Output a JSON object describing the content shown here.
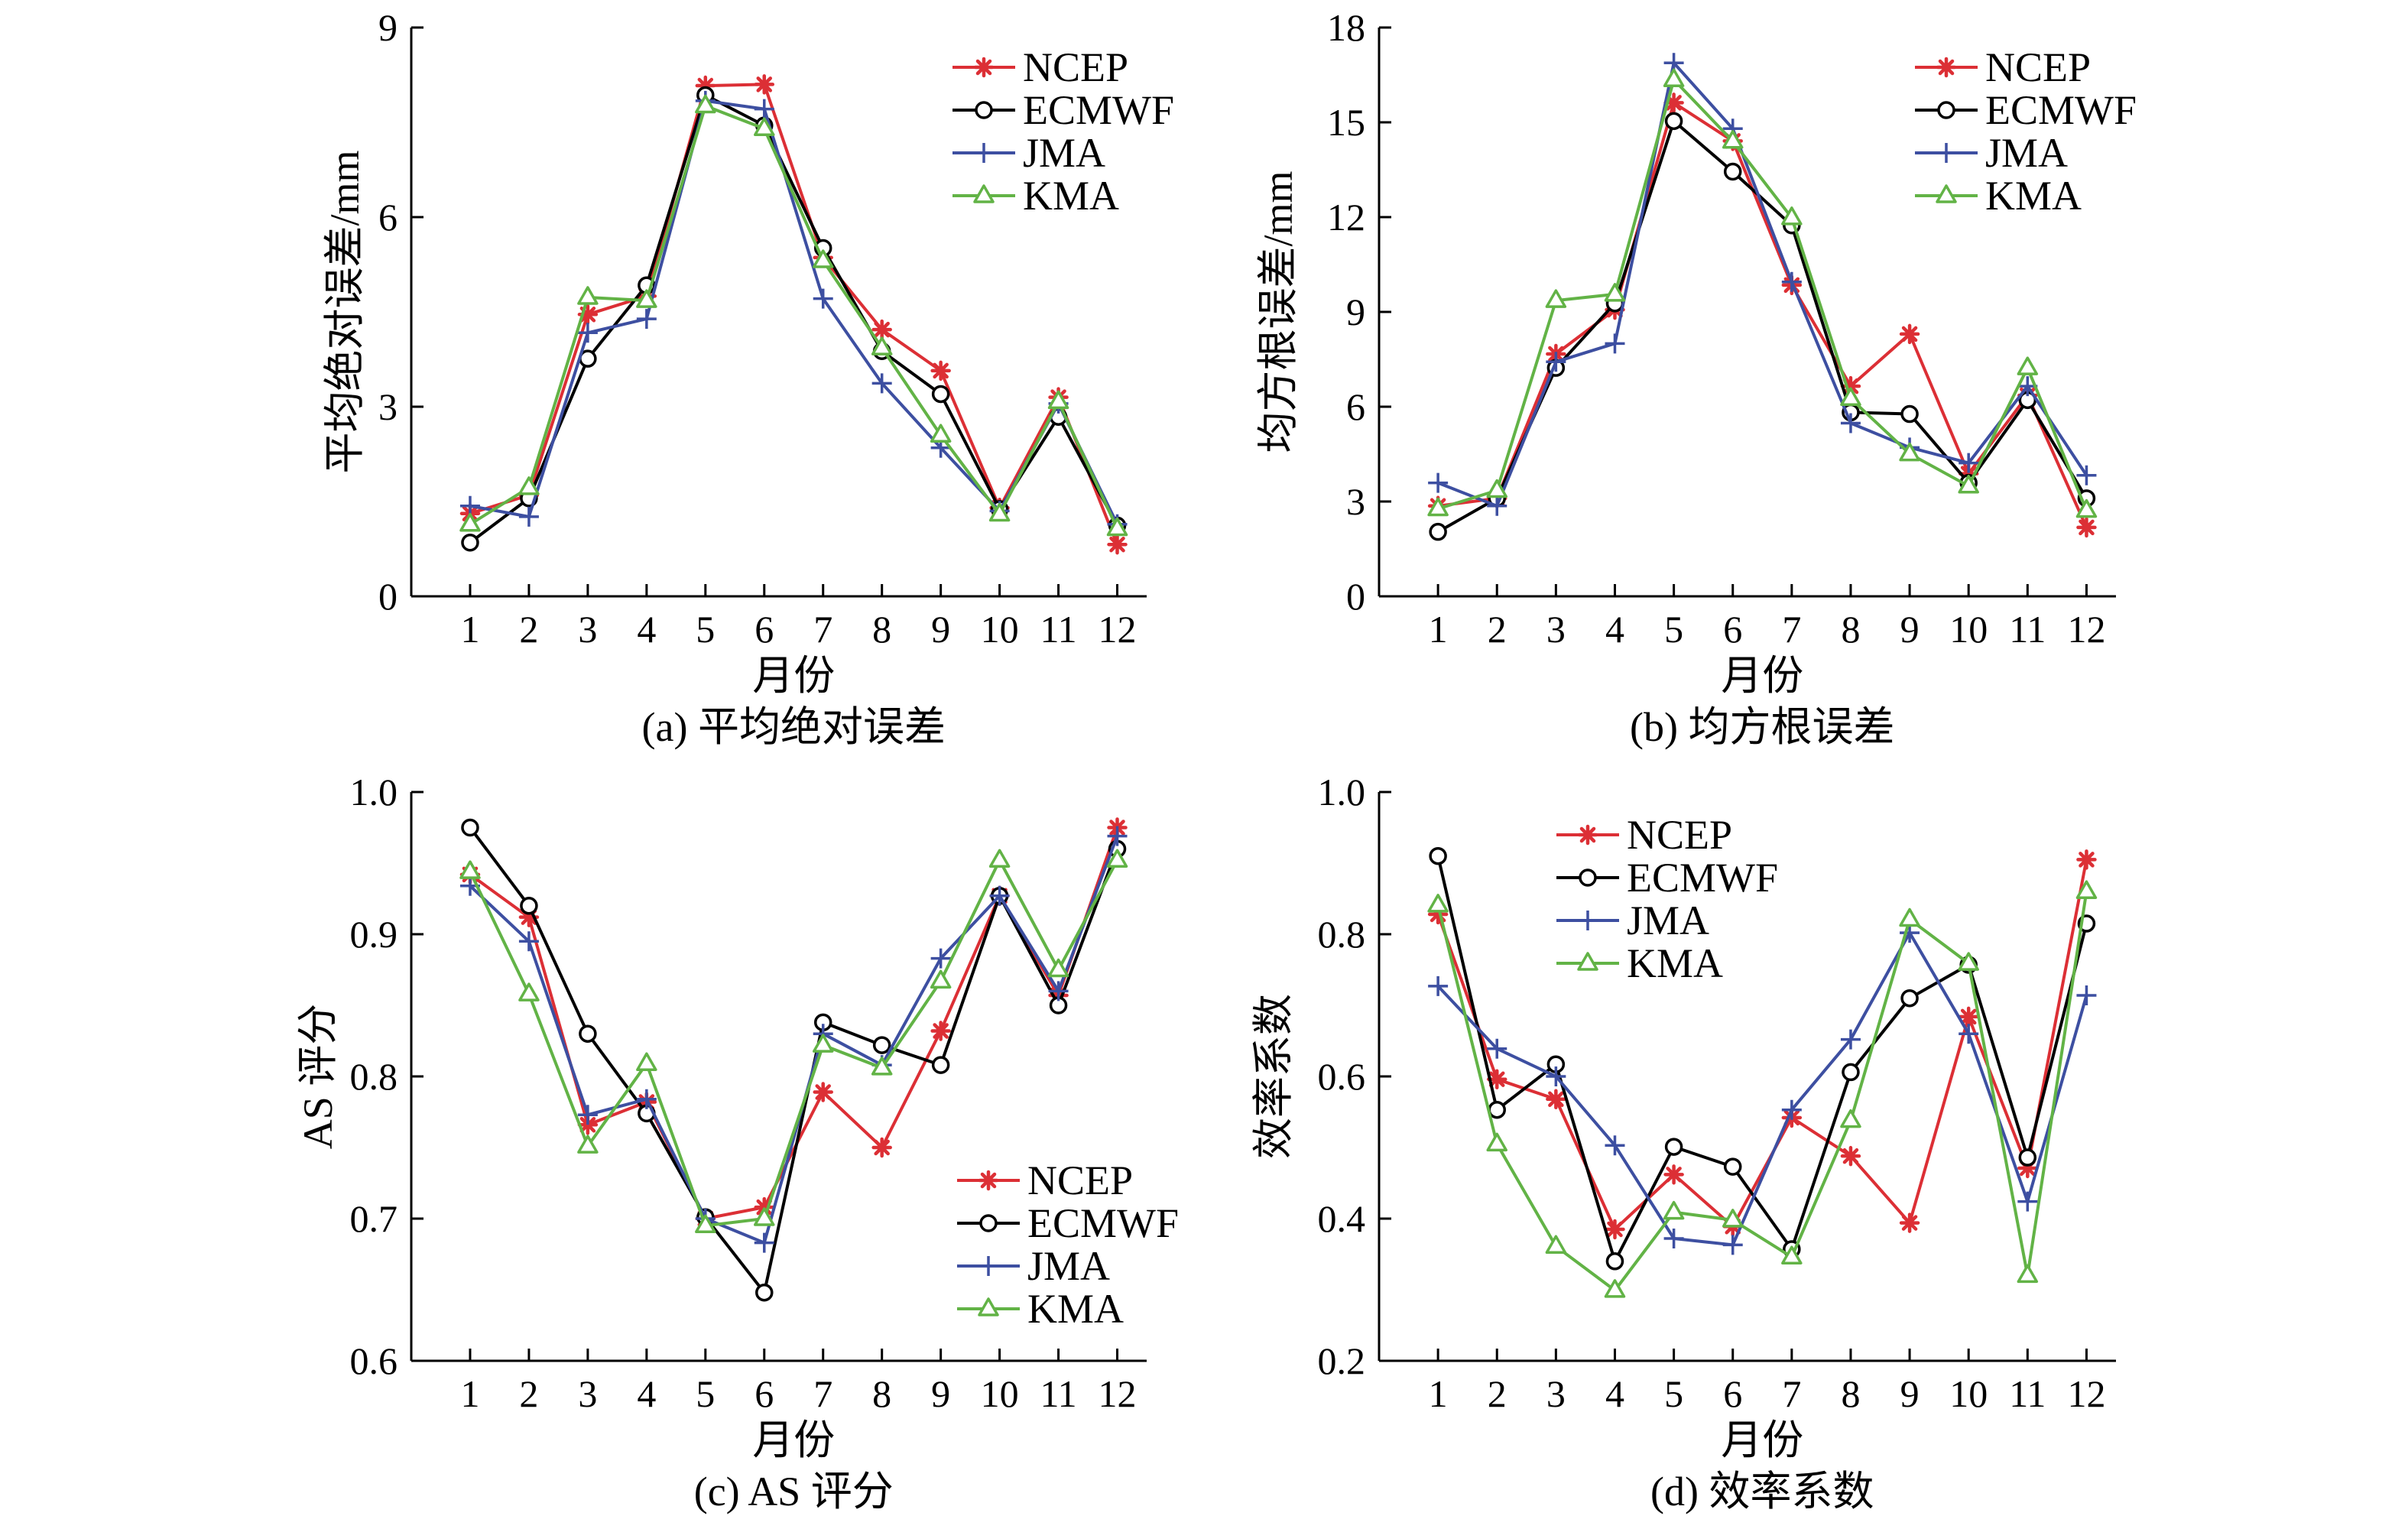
{
  "chart_data": [
    {
      "type": "line",
      "caption": "(a) 平均绝对误差",
      "xlabel": "月份",
      "ylabel": "平均绝对误差/mm",
      "categories": [
        "1",
        "2",
        "3",
        "4",
        "5",
        "6",
        "7",
        "8",
        "9",
        "10",
        "11",
        "12"
      ],
      "xlim": [
        0,
        12.5
      ],
      "ylim": [
        0,
        9
      ],
      "ytick_labels": [
        "0",
        "3",
        "6",
        "9"
      ],
      "grid": false,
      "legend": "top-right",
      "series": [
        {
          "name": "NCEP",
          "color": "#dc2f35",
          "marker": "asterisk",
          "values": [
            1.31,
            1.6,
            4.46,
            4.75,
            8.08,
            8.1,
            5.36,
            4.22,
            3.57,
            1.4,
            3.15,
            0.82
          ]
        },
        {
          "name": "ECMWF",
          "color": "#000000",
          "marker": "open-circle",
          "values": [
            0.85,
            1.55,
            3.76,
            4.92,
            7.93,
            7.45,
            5.51,
            3.88,
            3.2,
            1.38,
            2.84,
            1.12
          ]
        },
        {
          "name": "JMA",
          "color": "#3d4fa1",
          "marker": "plus",
          "values": [
            1.43,
            1.26,
            4.17,
            4.39,
            7.84,
            7.71,
            4.71,
            3.37,
            2.35,
            1.35,
            3.05,
            1.14
          ]
        },
        {
          "name": "KMA",
          "color": "#62b346",
          "marker": "open-triangle",
          "values": [
            1.14,
            1.72,
            4.73,
            4.68,
            7.76,
            7.4,
            5.31,
            3.93,
            2.55,
            1.3,
            3.08,
            1.07
          ]
        }
      ]
    },
    {
      "type": "line",
      "caption": "(b) 均方根误差",
      "xlabel": "月份",
      "ylabel": "均方根误差/mm",
      "categories": [
        "1",
        "2",
        "3",
        "4",
        "5",
        "6",
        "7",
        "8",
        "9",
        "10",
        "11",
        "12"
      ],
      "xlim": [
        0,
        12.5
      ],
      "ylim": [
        0,
        18
      ],
      "ytick_labels": [
        "0",
        "3",
        "6",
        "9",
        "12",
        "15",
        "18"
      ],
      "grid": false,
      "legend": "top-right",
      "series": [
        {
          "name": "NCEP",
          "color": "#dc2f35",
          "marker": "asterisk",
          "values": [
            2.86,
            3.1,
            7.67,
            9.07,
            15.62,
            14.41,
            9.85,
            6.65,
            8.3,
            3.88,
            6.36,
            2.18
          ]
        },
        {
          "name": "ECMWF",
          "color": "#000000",
          "marker": "open-circle",
          "values": [
            2.04,
            3.1,
            7.23,
            9.27,
            15.04,
            13.44,
            11.74,
            5.82,
            5.77,
            3.59,
            6.21,
            3.1
          ]
        },
        {
          "name": "JMA",
          "color": "#3d4fa1",
          "marker": "plus",
          "values": [
            3.59,
            2.86,
            7.42,
            8.0,
            16.88,
            14.8,
            9.95,
            5.48,
            4.71,
            4.22,
            6.65,
            3.83
          ]
        },
        {
          "name": "KMA",
          "color": "#62b346",
          "marker": "open-triangle",
          "values": [
            2.77,
            3.35,
            9.36,
            9.56,
            16.35,
            14.4,
            11.98,
            6.26,
            4.51,
            3.49,
            7.23,
            2.72
          ]
        }
      ]
    },
    {
      "type": "line",
      "caption": "(c) AS 评分",
      "xlabel": "月份",
      "ylabel": "AS 评分",
      "categories": [
        "1",
        "2",
        "3",
        "4",
        "5",
        "6",
        "7",
        "8",
        "9",
        "10",
        "11",
        "12"
      ],
      "xlim": [
        0,
        12.5
      ],
      "ylim": [
        0.6,
        1.0
      ],
      "ytick_labels": [
        "0.6",
        "0.7",
        "0.8",
        "0.9",
        "1.0"
      ],
      "grid": false,
      "legend": "bottom-right",
      "series": [
        {
          "name": "NCEP",
          "color": "#dc2f35",
          "marker": "asterisk",
          "values": [
            0.942,
            0.912,
            0.766,
            0.782,
            0.7,
            0.708,
            0.789,
            0.75,
            0.832,
            0.927,
            0.857,
            0.975
          ]
        },
        {
          "name": "ECMWF",
          "color": "#000000",
          "marker": "open-circle",
          "values": [
            0.975,
            0.92,
            0.83,
            0.774,
            0.701,
            0.648,
            0.838,
            0.822,
            0.808,
            0.927,
            0.85,
            0.96
          ]
        },
        {
          "name": "JMA",
          "color": "#3d4fa1",
          "marker": "plus",
          "values": [
            0.934,
            0.895,
            0.773,
            0.784,
            0.7,
            0.683,
            0.83,
            0.808,
            0.883,
            0.927,
            0.86,
            0.969
          ]
        },
        {
          "name": "KMA",
          "color": "#62b346",
          "marker": "open-triangle",
          "values": [
            0.944,
            0.858,
            0.751,
            0.809,
            0.695,
            0.7,
            0.822,
            0.806,
            0.867,
            0.952,
            0.875,
            0.952
          ]
        }
      ]
    },
    {
      "type": "line",
      "caption": "(d) 效率系数",
      "xlabel": "月份",
      "ylabel": "效率系数",
      "categories": [
        "1",
        "2",
        "3",
        "4",
        "5",
        "6",
        "7",
        "8",
        "9",
        "10",
        "11",
        "12"
      ],
      "xlim": [
        0,
        12.5
      ],
      "ylim": [
        0.2,
        1.0
      ],
      "ytick_labels": [
        "0.2",
        "0.4",
        "0.6",
        "0.8",
        "1.0"
      ],
      "grid": false,
      "legend": "top-center",
      "series": [
        {
          "name": "NCEP",
          "color": "#dc2f35",
          "marker": "asterisk",
          "values": [
            0.828,
            0.596,
            0.568,
            0.385,
            0.462,
            0.389,
            0.542,
            0.488,
            0.394,
            0.684,
            0.471,
            0.905
          ]
        },
        {
          "name": "ECMWF",
          "color": "#000000",
          "marker": "open-circle",
          "values": [
            0.91,
            0.553,
            0.617,
            0.34,
            0.501,
            0.473,
            0.357,
            0.606,
            0.71,
            0.757,
            0.486,
            0.815
          ]
        },
        {
          "name": "JMA",
          "color": "#3d4fa1",
          "marker": "plus",
          "values": [
            0.727,
            0.639,
            0.6,
            0.503,
            0.372,
            0.363,
            0.553,
            0.652,
            0.802,
            0.66,
            0.424,
            0.714
          ]
        },
        {
          "name": "KMA",
          "color": "#62b346",
          "marker": "open-triangle",
          "values": [
            0.841,
            0.505,
            0.361,
            0.299,
            0.409,
            0.398,
            0.346,
            0.538,
            0.821,
            0.759,
            0.32,
            0.86
          ]
        }
      ]
    }
  ]
}
